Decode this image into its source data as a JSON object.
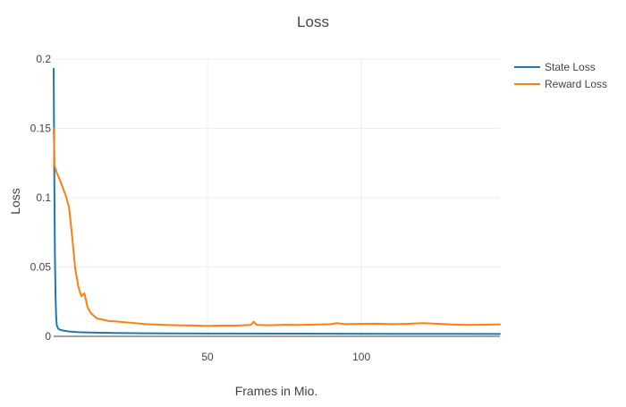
{
  "chart_data": {
    "type": "line",
    "title": "Loss",
    "xlabel": "Frames in Mio.",
    "ylabel": "Loss",
    "xlim": [
      0,
      145
    ],
    "ylim": [
      0,
      0.2
    ],
    "x_ticks": [
      50,
      100
    ],
    "y_ticks": [
      0,
      0.05,
      0.1,
      0.15,
      0.2
    ],
    "x_tick_labels": [
      "50",
      "100"
    ],
    "y_tick_labels": [
      "0",
      "0.05",
      "0.1",
      "0.15",
      "0.2"
    ],
    "grid": true,
    "legend_position": "top-right",
    "series": [
      {
        "name": "State Loss",
        "color": "#1f77b4",
        "x": [
          0,
          0.2,
          0.4,
          0.6,
          0.8,
          1,
          1.5,
          2,
          3,
          5,
          8,
          12,
          20,
          30,
          50,
          80,
          110,
          145
        ],
        "y": [
          0.193,
          0.12,
          0.06,
          0.03,
          0.015,
          0.008,
          0.0055,
          0.0048,
          0.0042,
          0.0035,
          0.003,
          0.0027,
          0.0024,
          0.0022,
          0.002,
          0.0019,
          0.0018,
          0.0017
        ]
      },
      {
        "name": "Reward Loss",
        "color": "#ff7f0e",
        "x": [
          0,
          0.3,
          0.6,
          1,
          2,
          3,
          4,
          5,
          6,
          7,
          8,
          9,
          10,
          10.5,
          11,
          12,
          13,
          14,
          16,
          18,
          20,
          25,
          30,
          35,
          40,
          45,
          50,
          55,
          60,
          64,
          65,
          66,
          70,
          75,
          80,
          85,
          90,
          92,
          95,
          100,
          105,
          110,
          115,
          120,
          125,
          130,
          135,
          140,
          145
        ],
        "y": [
          0.15,
          0.123,
          0.121,
          0.118,
          0.113,
          0.107,
          0.101,
          0.093,
          0.072,
          0.049,
          0.036,
          0.029,
          0.031,
          0.026,
          0.021,
          0.017,
          0.015,
          0.013,
          0.012,
          0.011,
          0.0108,
          0.0098,
          0.0088,
          0.0083,
          0.008,
          0.0078,
          0.0075,
          0.0077,
          0.0078,
          0.0082,
          0.0105,
          0.0082,
          0.008,
          0.0083,
          0.0082,
          0.0085,
          0.0088,
          0.0095,
          0.0088,
          0.009,
          0.0091,
          0.0088,
          0.009,
          0.0095,
          0.009,
          0.0085,
          0.0082,
          0.0084,
          0.0086
        ]
      }
    ]
  }
}
